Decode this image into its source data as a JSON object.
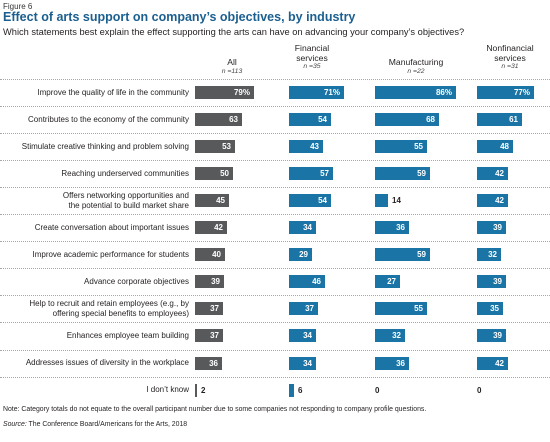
{
  "figure_label": "Figure 6",
  "source_label": "Source:",
  "chart_data": {
    "type": "bar",
    "title": "Effect of arts support on company’s objectives, by industry",
    "subtitle": "Which statements best explain the effect supporting the arts can have on advancing your company’s objectives?",
    "value_format": "first row values shown with %",
    "xlim": [
      0,
      100
    ],
    "categories": [
      "Improve the quality of life in the community",
      "Contributes to the economy of the community",
      "Stimulate creative thinking and problem solving",
      "Reaching underserved communities",
      "Offers networking opportunities and\nthe potential to build market share",
      "Create conversation about important issues",
      "Improve academic performance for students",
      "Advance corporate objectives",
      "Help to recruit and retain employees (e.g., by\noffering special benefits to employees)",
      "Enhances employee team building",
      "Addresses issues of diversity in the workplace",
      "I don’t know"
    ],
    "series": [
      {
        "name": "All",
        "n": "n =113",
        "color": "#58595b",
        "values": [
          79,
          63,
          53,
          50,
          45,
          42,
          40,
          39,
          37,
          37,
          36,
          2
        ]
      },
      {
        "name": "Financial\nservices",
        "n": "n =35",
        "color": "#1a75a6",
        "values": [
          71,
          54,
          43,
          57,
          54,
          34,
          29,
          46,
          37,
          34,
          34,
          6
        ]
      },
      {
        "name": "Manufacturing",
        "n": "n =22",
        "color": "#1a75a6",
        "values": [
          86,
          68,
          55,
          59,
          14,
          36,
          59,
          27,
          55,
          32,
          36,
          0
        ]
      },
      {
        "name": "Nonfinancial\nservices",
        "n": "n =31",
        "color": "#1a75a6",
        "values": [
          77,
          61,
          48,
          42,
          42,
          39,
          32,
          39,
          35,
          39,
          42,
          0
        ]
      }
    ]
  },
  "note": "Note: Category totals do not equate to the overall participant number due to some companies not responding to company profile questions.",
  "source": "The Conference Board/Americans for the Arts, 2018"
}
